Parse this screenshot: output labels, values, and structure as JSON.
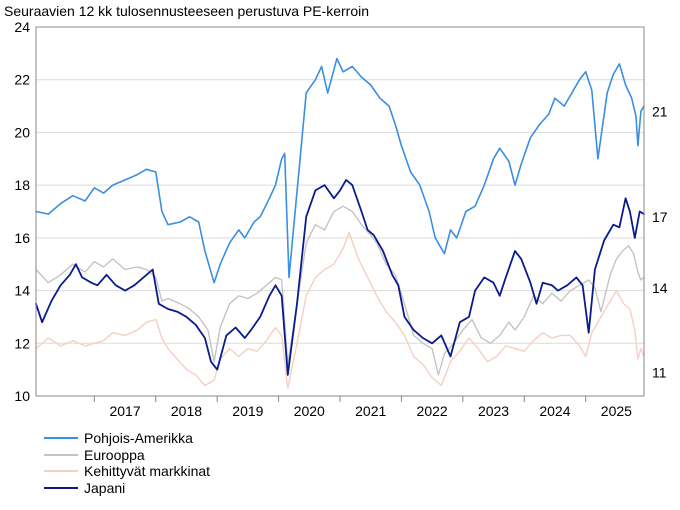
{
  "chart_data": {
    "type": "line",
    "title": "Seuraavien 12 kk tulosennusteeseen perustuva PE-kerroin",
    "xlabel": "",
    "ylabel": "",
    "xlim": [
      2016.05,
      2025.95
    ],
    "ylim": [
      10,
      24
    ],
    "yticks": [
      10,
      12,
      14,
      16,
      18,
      20,
      22,
      24
    ],
    "xtick_labels": [
      "2017",
      "2018",
      "2019",
      "2020",
      "2021",
      "2022",
      "2023",
      "2024",
      "2025"
    ],
    "grid": "horizontal",
    "legend_position": "bottom-left",
    "end_labels": [
      "21",
      "17",
      "14",
      "11"
    ],
    "series": [
      {
        "name": "Pohjois-Amerikka",
        "color": "#3a8fe0",
        "width": 1.6,
        "points": [
          [
            2016.05,
            17.0
          ],
          [
            2016.25,
            16.9
          ],
          [
            2016.45,
            17.3
          ],
          [
            2016.65,
            17.6
          ],
          [
            2016.85,
            17.4
          ],
          [
            2017.0,
            17.9
          ],
          [
            2017.15,
            17.7
          ],
          [
            2017.3,
            18.0
          ],
          [
            2017.5,
            18.2
          ],
          [
            2017.7,
            18.4
          ],
          [
            2017.85,
            18.6
          ],
          [
            2018.0,
            18.5
          ],
          [
            2018.1,
            17.0
          ],
          [
            2018.2,
            16.5
          ],
          [
            2018.4,
            16.6
          ],
          [
            2018.55,
            16.8
          ],
          [
            2018.7,
            16.6
          ],
          [
            2018.8,
            15.5
          ],
          [
            2018.95,
            14.3
          ],
          [
            2019.05,
            15.0
          ],
          [
            2019.2,
            15.8
          ],
          [
            2019.35,
            16.3
          ],
          [
            2019.45,
            16.0
          ],
          [
            2019.6,
            16.6
          ],
          [
            2019.7,
            16.8
          ],
          [
            2019.85,
            17.5
          ],
          [
            2019.95,
            18.0
          ],
          [
            2020.05,
            19.0
          ],
          [
            2020.1,
            19.2
          ],
          [
            2020.17,
            14.5
          ],
          [
            2020.25,
            16.5
          ],
          [
            2020.35,
            19.0
          ],
          [
            2020.45,
            21.5
          ],
          [
            2020.6,
            22.0
          ],
          [
            2020.7,
            22.5
          ],
          [
            2020.8,
            21.5
          ],
          [
            2020.95,
            22.8
          ],
          [
            2021.05,
            22.3
          ],
          [
            2021.2,
            22.5
          ],
          [
            2021.35,
            22.1
          ],
          [
            2021.5,
            21.8
          ],
          [
            2021.65,
            21.3
          ],
          [
            2021.8,
            21.0
          ],
          [
            2021.9,
            20.3
          ],
          [
            2022.0,
            19.5
          ],
          [
            2022.15,
            18.5
          ],
          [
            2022.3,
            18.0
          ],
          [
            2022.45,
            17.0
          ],
          [
            2022.55,
            16.0
          ],
          [
            2022.7,
            15.4
          ],
          [
            2022.8,
            16.3
          ],
          [
            2022.9,
            16.0
          ],
          [
            2023.05,
            17.0
          ],
          [
            2023.2,
            17.2
          ],
          [
            2023.35,
            18.0
          ],
          [
            2023.5,
            19.0
          ],
          [
            2023.6,
            19.4
          ],
          [
            2023.75,
            18.9
          ],
          [
            2023.85,
            18.0
          ],
          [
            2023.95,
            18.8
          ],
          [
            2024.1,
            19.8
          ],
          [
            2024.25,
            20.3
          ],
          [
            2024.4,
            20.7
          ],
          [
            2024.5,
            21.3
          ],
          [
            2024.65,
            21.0
          ],
          [
            2024.8,
            21.6
          ],
          [
            2024.9,
            22.0
          ],
          [
            2025.0,
            22.3
          ],
          [
            2025.1,
            21.6
          ],
          [
            2025.2,
            19.0
          ],
          [
            2025.35,
            21.5
          ],
          [
            2025.45,
            22.2
          ],
          [
            2025.55,
            22.6
          ],
          [
            2025.65,
            21.8
          ],
          [
            2025.75,
            21.3
          ],
          [
            2025.82,
            20.6
          ],
          [
            2025.85,
            19.5
          ],
          [
            2025.9,
            20.8
          ],
          [
            2025.95,
            21.0
          ]
        ]
      },
      {
        "name": "Eurooppa",
        "color": "#c4c4c4",
        "width": 1.4,
        "points": [
          [
            2016.05,
            14.8
          ],
          [
            2016.25,
            14.3
          ],
          [
            2016.45,
            14.6
          ],
          [
            2016.65,
            15.0
          ],
          [
            2016.85,
            14.7
          ],
          [
            2017.0,
            15.1
          ],
          [
            2017.15,
            14.9
          ],
          [
            2017.3,
            15.2
          ],
          [
            2017.5,
            14.8
          ],
          [
            2017.7,
            14.9
          ],
          [
            2017.85,
            14.8
          ],
          [
            2018.0,
            14.5
          ],
          [
            2018.1,
            13.6
          ],
          [
            2018.2,
            13.7
          ],
          [
            2018.4,
            13.5
          ],
          [
            2018.55,
            13.3
          ],
          [
            2018.7,
            13.0
          ],
          [
            2018.85,
            12.5
          ],
          [
            2018.95,
            11.3
          ],
          [
            2019.05,
            12.6
          ],
          [
            2019.2,
            13.5
          ],
          [
            2019.35,
            13.8
          ],
          [
            2019.5,
            13.7
          ],
          [
            2019.65,
            13.9
          ],
          [
            2019.8,
            14.2
          ],
          [
            2019.95,
            14.5
          ],
          [
            2020.05,
            14.4
          ],
          [
            2020.15,
            11.2
          ],
          [
            2020.3,
            13.5
          ],
          [
            2020.45,
            15.8
          ],
          [
            2020.6,
            16.5
          ],
          [
            2020.75,
            16.3
          ],
          [
            2020.9,
            17.0
          ],
          [
            2021.05,
            17.2
          ],
          [
            2021.2,
            17.0
          ],
          [
            2021.35,
            16.5
          ],
          [
            2021.5,
            16.1
          ],
          [
            2021.6,
            15.8
          ],
          [
            2021.75,
            15.0
          ],
          [
            2021.9,
            14.6
          ],
          [
            2022.05,
            13.5
          ],
          [
            2022.2,
            12.3
          ],
          [
            2022.35,
            12.0
          ],
          [
            2022.5,
            11.8
          ],
          [
            2022.6,
            10.8
          ],
          [
            2022.7,
            11.6
          ],
          [
            2022.85,
            12.0
          ],
          [
            2023.0,
            12.5
          ],
          [
            2023.15,
            12.9
          ],
          [
            2023.3,
            12.2
          ],
          [
            2023.45,
            12.0
          ],
          [
            2023.6,
            12.3
          ],
          [
            2023.75,
            12.8
          ],
          [
            2023.85,
            12.5
          ],
          [
            2024.0,
            13.0
          ],
          [
            2024.15,
            13.8
          ],
          [
            2024.3,
            13.5
          ],
          [
            2024.45,
            13.9
          ],
          [
            2024.6,
            13.6
          ],
          [
            2024.75,
            14.0
          ],
          [
            2024.9,
            14.2
          ],
          [
            2025.05,
            14.4
          ],
          [
            2025.15,
            14.1
          ],
          [
            2025.25,
            13.2
          ],
          [
            2025.4,
            14.6
          ],
          [
            2025.5,
            15.2
          ],
          [
            2025.6,
            15.5
          ],
          [
            2025.7,
            15.7
          ],
          [
            2025.78,
            15.4
          ],
          [
            2025.85,
            14.7
          ],
          [
            2025.9,
            14.4
          ],
          [
            2025.95,
            14.5
          ]
        ]
      },
      {
        "name": "Kehittyvät markkinat",
        "color": "#f5cfc3",
        "width": 1.4,
        "points": [
          [
            2016.05,
            11.8
          ],
          [
            2016.25,
            12.2
          ],
          [
            2016.45,
            11.9
          ],
          [
            2016.65,
            12.1
          ],
          [
            2016.85,
            11.9
          ],
          [
            2017.0,
            12.0
          ],
          [
            2017.15,
            12.1
          ],
          [
            2017.3,
            12.4
          ],
          [
            2017.5,
            12.3
          ],
          [
            2017.7,
            12.5
          ],
          [
            2017.85,
            12.8
          ],
          [
            2018.0,
            12.9
          ],
          [
            2018.1,
            12.2
          ],
          [
            2018.2,
            11.8
          ],
          [
            2018.35,
            11.4
          ],
          [
            2018.5,
            11.0
          ],
          [
            2018.65,
            10.8
          ],
          [
            2018.8,
            10.4
          ],
          [
            2018.95,
            10.6
          ],
          [
            2019.05,
            11.4
          ],
          [
            2019.2,
            11.8
          ],
          [
            2019.35,
            11.5
          ],
          [
            2019.5,
            11.8
          ],
          [
            2019.65,
            11.7
          ],
          [
            2019.8,
            12.1
          ],
          [
            2019.95,
            12.6
          ],
          [
            2020.05,
            12.3
          ],
          [
            2020.15,
            10.3
          ],
          [
            2020.3,
            12.0
          ],
          [
            2020.45,
            13.8
          ],
          [
            2020.6,
            14.5
          ],
          [
            2020.75,
            14.8
          ],
          [
            2020.9,
            15.0
          ],
          [
            2021.05,
            15.6
          ],
          [
            2021.15,
            16.2
          ],
          [
            2021.3,
            15.2
          ],
          [
            2021.45,
            14.5
          ],
          [
            2021.6,
            13.8
          ],
          [
            2021.75,
            13.2
          ],
          [
            2021.9,
            12.8
          ],
          [
            2022.05,
            12.3
          ],
          [
            2022.2,
            11.5
          ],
          [
            2022.35,
            11.2
          ],
          [
            2022.5,
            10.7
          ],
          [
            2022.65,
            10.4
          ],
          [
            2022.8,
            11.3
          ],
          [
            2022.95,
            11.7
          ],
          [
            2023.1,
            12.2
          ],
          [
            2023.25,
            11.8
          ],
          [
            2023.4,
            11.3
          ],
          [
            2023.55,
            11.5
          ],
          [
            2023.7,
            11.9
          ],
          [
            2023.85,
            11.8
          ],
          [
            2024.0,
            11.7
          ],
          [
            2024.15,
            12.1
          ],
          [
            2024.3,
            12.4
          ],
          [
            2024.45,
            12.2
          ],
          [
            2024.6,
            12.3
          ],
          [
            2024.75,
            12.3
          ],
          [
            2024.9,
            11.9
          ],
          [
            2025.0,
            11.5
          ],
          [
            2025.1,
            12.4
          ],
          [
            2025.25,
            13.0
          ],
          [
            2025.4,
            13.6
          ],
          [
            2025.5,
            14.0
          ],
          [
            2025.62,
            13.5
          ],
          [
            2025.72,
            13.3
          ],
          [
            2025.8,
            12.5
          ],
          [
            2025.85,
            11.4
          ],
          [
            2025.9,
            11.8
          ],
          [
            2025.95,
            11.5
          ]
        ]
      },
      {
        "name": "Japani",
        "color": "#0a1c8c",
        "width": 1.8,
        "points": [
          [
            2016.05,
            13.5
          ],
          [
            2016.15,
            12.8
          ],
          [
            2016.3,
            13.6
          ],
          [
            2016.45,
            14.2
          ],
          [
            2016.6,
            14.6
          ],
          [
            2016.7,
            15.0
          ],
          [
            2016.8,
            14.5
          ],
          [
            2016.95,
            14.3
          ],
          [
            2017.05,
            14.2
          ],
          [
            2017.2,
            14.6
          ],
          [
            2017.35,
            14.2
          ],
          [
            2017.5,
            14.0
          ],
          [
            2017.65,
            14.2
          ],
          [
            2017.8,
            14.5
          ],
          [
            2017.95,
            14.8
          ],
          [
            2018.05,
            13.5
          ],
          [
            2018.2,
            13.3
          ],
          [
            2018.35,
            13.2
          ],
          [
            2018.5,
            13.0
          ],
          [
            2018.65,
            12.7
          ],
          [
            2018.8,
            12.2
          ],
          [
            2018.9,
            11.3
          ],
          [
            2019.0,
            11.0
          ],
          [
            2019.15,
            12.3
          ],
          [
            2019.3,
            12.6
          ],
          [
            2019.45,
            12.2
          ],
          [
            2019.55,
            12.5
          ],
          [
            2019.7,
            13.0
          ],
          [
            2019.85,
            13.8
          ],
          [
            2019.95,
            14.2
          ],
          [
            2020.05,
            13.8
          ],
          [
            2020.15,
            10.8
          ],
          [
            2020.3,
            13.5
          ],
          [
            2020.45,
            16.8
          ],
          [
            2020.6,
            17.8
          ],
          [
            2020.75,
            18.0
          ],
          [
            2020.9,
            17.5
          ],
          [
            2021.0,
            17.8
          ],
          [
            2021.1,
            18.2
          ],
          [
            2021.2,
            18.0
          ],
          [
            2021.35,
            17.0
          ],
          [
            2021.45,
            16.3
          ],
          [
            2021.55,
            16.1
          ],
          [
            2021.7,
            15.5
          ],
          [
            2021.85,
            14.6
          ],
          [
            2021.95,
            14.2
          ],
          [
            2022.05,
            13.0
          ],
          [
            2022.2,
            12.5
          ],
          [
            2022.35,
            12.2
          ],
          [
            2022.5,
            12.0
          ],
          [
            2022.65,
            12.3
          ],
          [
            2022.8,
            11.5
          ],
          [
            2022.95,
            12.8
          ],
          [
            2023.1,
            13.0
          ],
          [
            2023.2,
            14.0
          ],
          [
            2023.35,
            14.5
          ],
          [
            2023.5,
            14.3
          ],
          [
            2023.6,
            13.8
          ],
          [
            2023.7,
            14.5
          ],
          [
            2023.85,
            15.5
          ],
          [
            2023.95,
            15.2
          ],
          [
            2024.1,
            14.3
          ],
          [
            2024.2,
            13.5
          ],
          [
            2024.3,
            14.3
          ],
          [
            2024.45,
            14.2
          ],
          [
            2024.55,
            14.0
          ],
          [
            2024.7,
            14.2
          ],
          [
            2024.85,
            14.5
          ],
          [
            2024.95,
            14.2
          ],
          [
            2025.05,
            12.4
          ],
          [
            2025.15,
            14.8
          ],
          [
            2025.3,
            15.9
          ],
          [
            2025.45,
            16.5
          ],
          [
            2025.55,
            16.4
          ],
          [
            2025.65,
            17.5
          ],
          [
            2025.72,
            17.0
          ],
          [
            2025.8,
            16.0
          ],
          [
            2025.88,
            17.0
          ],
          [
            2025.95,
            16.9
          ]
        ]
      }
    ]
  }
}
